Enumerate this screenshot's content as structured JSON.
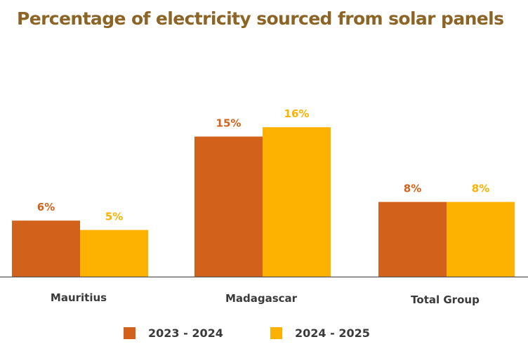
{
  "chart_data": {
    "type": "bar",
    "title": "Percentage of electricity sourced from solar panels",
    "categories": [
      "Mauritius",
      "Madagascar",
      "Total Group"
    ],
    "series": [
      {
        "name": "2023 - 2024",
        "values": [
          6,
          15,
          8
        ],
        "labels": [
          "6%",
          "15%",
          "8%"
        ],
        "color": "#d2621b"
      },
      {
        "name": "2024 - 2025",
        "values": [
          5,
          16,
          8
        ],
        "labels": [
          "5%",
          "16%",
          "8%"
        ],
        "color": "#fdb100"
      }
    ],
    "xlabel": "",
    "ylabel": "",
    "ylim": [
      0,
      20
    ],
    "grid": false,
    "legend": "bottom-center"
  },
  "colors": {
    "title": "#8c6426",
    "axis": "#555555",
    "category_label": "#3a3a3a"
  }
}
